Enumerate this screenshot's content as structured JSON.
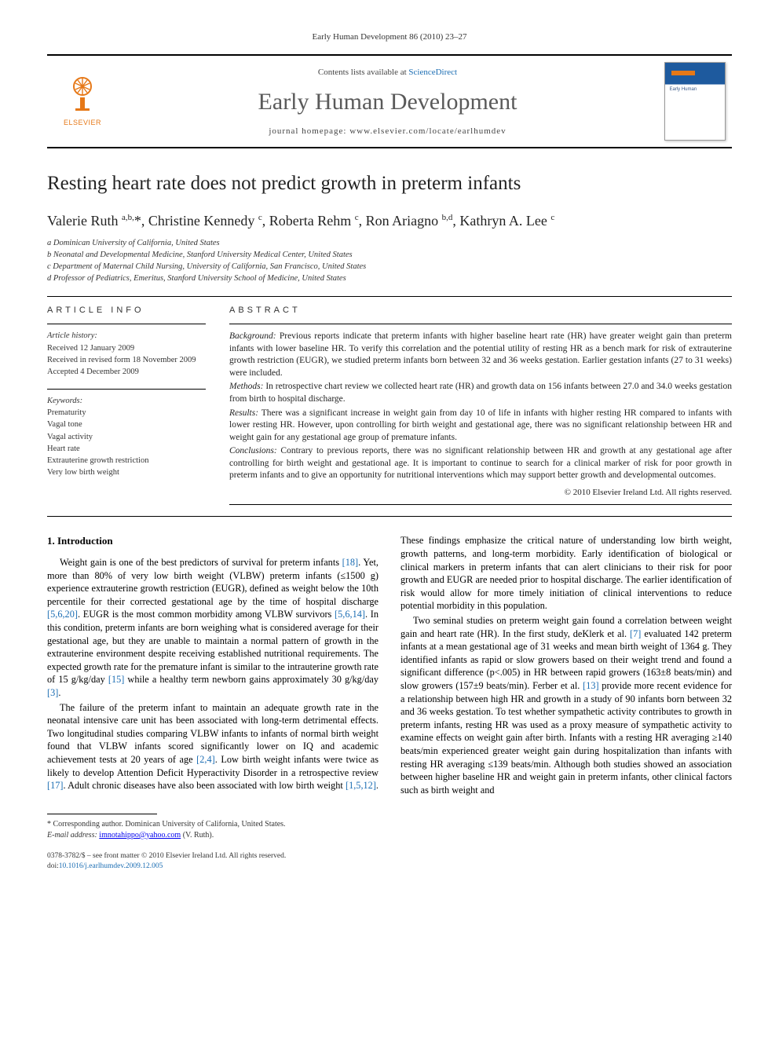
{
  "running_head": "Early Human Development 86 (2010) 23–27",
  "banner": {
    "contents_prefix": "Contents lists available at ",
    "contents_link": "ScienceDirect",
    "journal_name": "Early Human Development",
    "homepage_prefix": "journal homepage: ",
    "homepage_url": "www.elsevier.com/locate/earlhumdev",
    "publisher": "ELSEVIER"
  },
  "title": "Resting heart rate does not predict growth in preterm infants",
  "authors_html": "Valerie Ruth <sup>a,b,</sup>*, Christine Kennedy <sup>c</sup>, Roberta Rehm <sup>c</sup>, Ron Ariagno <sup>b,d</sup>, Kathryn A. Lee <sup>c</sup>",
  "affiliations": [
    "a  Dominican University of California, United States",
    "b  Neonatal and Developmental Medicine, Stanford University Medical Center, United States",
    "c  Department of Maternal Child Nursing, University of California, San Francisco, United States",
    "d  Professor of Pediatrics, Emeritus, Stanford University School of Medicine, United States"
  ],
  "article_info": {
    "head": "ARTICLE INFO",
    "history_label": "Article history:",
    "history": [
      "Received 12 January 2009",
      "Received in revised form 18 November 2009",
      "Accepted 4 December 2009"
    ],
    "keywords_label": "Keywords:",
    "keywords": [
      "Prematurity",
      "Vagal tone",
      "Vagal activity",
      "Heart rate",
      "Extrauterine growth restriction",
      "Very low birth weight"
    ]
  },
  "abstract": {
    "head": "ABSTRACT",
    "background_label": "Background:",
    "background": " Previous reports indicate that preterm infants with higher baseline heart rate (HR) have greater weight gain than preterm infants with lower baseline HR. To verify this correlation and the potential utility of resting HR as a bench mark for risk of extrauterine growth restriction (EUGR), we studied preterm infants born between 32 and 36 weeks gestation. Earlier gestation infants (27 to 31 weeks) were included.",
    "methods_label": "Methods:",
    "methods": " In retrospective chart review we collected heart rate (HR) and growth data on 156 infants between 27.0 and 34.0 weeks gestation from birth to hospital discharge.",
    "results_label": "Results:",
    "results": " There was a significant increase in weight gain from day 10 of life in infants with higher resting HR compared to infants with lower resting HR. However, upon controlling for birth weight and gestational age, there was no significant relationship between HR and weight gain for any gestational age group of premature infants.",
    "conclusions_label": "Conclusions:",
    "conclusions": " Contrary to previous reports, there was no significant relationship between HR and growth at any gestational age after controlling for birth weight and gestational age. It is important to continue to search for a clinical marker of risk for poor growth in preterm infants and to give an opportunity for nutritional interventions which may support better growth and developmental outcomes.",
    "copyright": "© 2010 Elsevier Ireland Ltd. All rights reserved."
  },
  "intro_head": "1. Introduction",
  "para1a": "Weight gain is one of the best predictors of survival for preterm infants ",
  "ref18": "[18]",
  "para1b": ". Yet, more than 80% of very low birth weight (VLBW) preterm infants (≤1500 g) experience extrauterine growth restriction (EUGR), defined as weight below the 10th percentile for their corrected gestational age by the time of hospital discharge ",
  "ref5620": "[5,6,20]",
  "para1c": ". EUGR is the most common morbidity among VLBW survivors ",
  "ref5614": "[5,6,14]",
  "para1d": ". In this condition, preterm infants are born weighing what is considered average for their gestational age, but they are unable to maintain a normal pattern of growth in the extrauterine environment despite receiving established nutritional requirements. The expected growth rate for the premature infant is similar to the intrauterine growth rate of 15 g/kg/day ",
  "ref15": "[15]",
  "para1e": " while a healthy term newborn gains approximately 30 g/kg/day ",
  "ref3": "[3]",
  "para1f": ".",
  "para2a": "The failure of the preterm infant to maintain an adequate growth rate in the neonatal intensive care unit has been associated with long-term detrimental effects. Two longitudinal studies comparing VLBW infants to infants of normal birth weight found that VLBW infants scored significantly lower on IQ and academic achievement tests at 20 years of age ",
  "ref24": "[2,4]",
  "para2b": ". Low birth weight infants were twice as likely to develop Attention Deficit Hyperactivity Disorder in a retrospective review ",
  "ref17": "[17]",
  "para2c": ". Adult chronic diseases have also been associated with low birth weight ",
  "ref1512": "[1,5,12]",
  "para2d": ". These findings emphasize the critical nature of understanding low birth weight, growth patterns, and long-term morbidity. Early identification of biological or clinical markers in preterm infants that can alert clinicians to their risk for poor growth and EUGR are needed prior to hospital discharge. The earlier identification of risk would allow for more timely initiation of clinical interventions to reduce potential morbidity in this population.",
  "para3a": "Two seminal studies on preterm weight gain found a correlation between weight gain and heart rate (HR). In the first study, deKlerk et al. ",
  "ref7": "[7]",
  "para3b": " evaluated 142 preterm infants at a mean gestational age of 31 weeks and mean birth weight of 1364 g. They identified infants as rapid or slow growers based on their weight trend and found a significant difference (p<.005) in HR between rapid growers (163±8 beats/min) and slow growers (157±9 beats/min). Ferber et al. ",
  "ref13": "[13]",
  "para3c": " provide more recent evidence for a relationship between high HR and growth in a study of 90 infants born between 32 and 36 weeks gestation. To test whether sympathetic activity contributes to growth in preterm infants, resting HR was used as a proxy measure of sympathetic activity to examine effects on weight gain after birth. Infants with a resting HR averaging ≥140 beats/min experienced greater weight gain during hospitalization than infants with resting HR averaging ≤139 beats/min. Although both studies showed an association between higher baseline HR and weight gain in preterm infants, other clinical factors such as birth weight and",
  "corresponding": {
    "line1": "* Corresponding author. Dominican University of California, United States.",
    "email_label": "E-mail address: ",
    "email": "imnotahippo@yahoo.com",
    "email_suffix": " (V. Ruth)."
  },
  "footer": {
    "issn": "0378-3782/$ – see front matter © 2010 Elsevier Ireland Ltd. All rights reserved.",
    "doi_label": "doi:",
    "doi": "10.1016/j.earlhumdev.2009.12.005"
  },
  "colors": {
    "link": "#1b6db3",
    "elsevier_orange": "#e67817",
    "cover_blue": "#1e5a9e"
  }
}
